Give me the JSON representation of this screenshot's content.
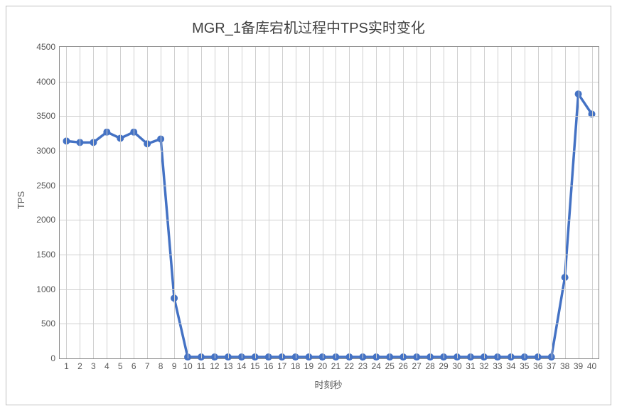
{
  "chart": {
    "type": "line",
    "title": "MGR_1备库宕机过程中TPS实时变化",
    "title_fontsize": 20,
    "title_color": "#404040",
    "background_color": "#ffffff",
    "border_color": "#bfbfbf",
    "plot_border_color": "#8a8a8a",
    "grid_color": "#d0d0d0",
    "axis_label_color": "#595959",
    "axis_tick_color": "#595959",
    "axis_tick_fontsize": 12,
    "x_axis": {
      "label": "时刻秒",
      "label_fontsize": 13,
      "categories": [
        "1",
        "2",
        "3",
        "4",
        "5",
        "6",
        "7",
        "8",
        "9",
        "10",
        "11",
        "12",
        "13",
        "14",
        "15",
        "16",
        "17",
        "18",
        "19",
        "20",
        "21",
        "22",
        "23",
        "24",
        "25",
        "26",
        "27",
        "28",
        "29",
        "30",
        "31",
        "32",
        "33",
        "34",
        "35",
        "36",
        "37",
        "38",
        "39",
        "40"
      ]
    },
    "y_axis": {
      "label": "TPS",
      "label_fontsize": 13,
      "ylim": [
        0,
        4500
      ],
      "ytick_step": 500,
      "ticks": [
        0,
        500,
        1000,
        1500,
        2000,
        2500,
        3000,
        3500,
        4000,
        4500
      ]
    },
    "series": {
      "name": "TPS",
      "line_color": "#4472c4",
      "line_width": 3.5,
      "marker_color": "#4472c4",
      "marker_size": 5,
      "marker_style": "circle",
      "values": [
        3140,
        3120,
        3120,
        3270,
        3180,
        3270,
        3100,
        3170,
        870,
        20,
        20,
        20,
        20,
        20,
        20,
        20,
        20,
        20,
        20,
        20,
        20,
        20,
        20,
        20,
        20,
        20,
        20,
        20,
        20,
        20,
        20,
        20,
        20,
        20,
        20,
        20,
        20,
        1170,
        3820,
        3530
      ]
    }
  }
}
